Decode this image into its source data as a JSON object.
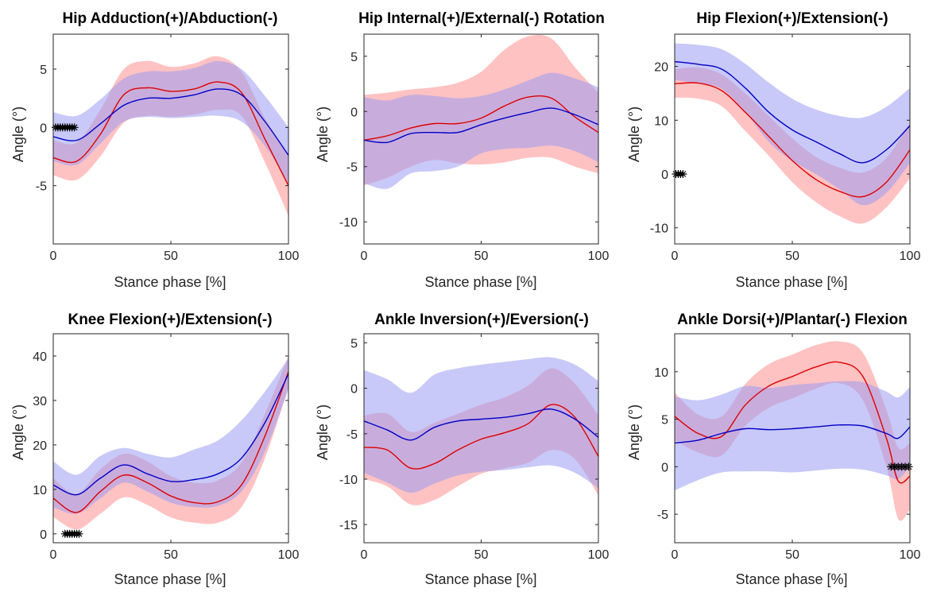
{
  "figure": {
    "series_legend": [
      {
        "key": "red",
        "color": "#e00000",
        "band_color": "#ff8f8f"
      },
      {
        "key": "blue",
        "color": "#0000c8",
        "band_color": "#9a9cf2"
      }
    ],
    "marker_color": "#000000"
  },
  "chart_data": [
    {
      "type": "line",
      "title": "Hip Adduction(+)/Abduction(-)",
      "xlabel": "Stance phase [%]",
      "ylabel": "Angle (°)",
      "xlim": [
        0,
        100
      ],
      "ylim": [
        -10,
        8
      ],
      "xticks": [
        0,
        50,
        100
      ],
      "yticks": [
        -5,
        0,
        5
      ],
      "grid": false,
      "x": [
        0,
        10,
        20,
        30,
        40,
        50,
        60,
        70,
        80,
        90,
        100
      ],
      "series": [
        {
          "key": "red",
          "mean": [
            -2.6,
            -2.9,
            -0.6,
            2.8,
            3.4,
            3.1,
            3.3,
            3.9,
            3.0,
            -1.0,
            -5.0
          ],
          "upper": [
            -1.1,
            -1.3,
            1.5,
            5.0,
            5.7,
            5.2,
            5.5,
            6.1,
            4.8,
            0.8,
            -2.5
          ],
          "lower": [
            -4.1,
            -4.5,
            -2.5,
            0.4,
            1.0,
            0.9,
            1.1,
            1.5,
            1.0,
            -3.0,
            -7.6
          ]
        },
        {
          "key": "blue",
          "mean": [
            -0.8,
            -1.1,
            0.3,
            1.9,
            2.5,
            2.5,
            2.8,
            3.3,
            2.8,
            0.5,
            -2.4
          ],
          "upper": [
            1.3,
            1.0,
            2.4,
            4.2,
            4.8,
            4.8,
            5.1,
            5.7,
            5.0,
            2.7,
            0.0
          ],
          "lower": [
            -2.9,
            -3.2,
            -1.4,
            0.5,
            0.9,
            0.8,
            0.9,
            1.0,
            0.5,
            -1.6,
            -4.8
          ]
        }
      ],
      "markers": {
        "y": 0,
        "x": [
          1,
          2,
          3,
          4,
          5,
          6,
          7,
          8,
          9
        ]
      }
    },
    {
      "type": "line",
      "title": "Hip Internal(+)/External(-) Rotation",
      "xlabel": "Stance phase [%]",
      "ylabel": "Angle (°)",
      "xlim": [
        0,
        100
      ],
      "ylim": [
        -12,
        7
      ],
      "xticks": [
        0,
        50,
        100
      ],
      "yticks": [
        -10,
        -5,
        0,
        5
      ],
      "grid": false,
      "x": [
        0,
        10,
        20,
        30,
        40,
        50,
        60,
        70,
        80,
        90,
        100
      ],
      "series": [
        {
          "key": "red",
          "mean": [
            -2.6,
            -2.2,
            -1.5,
            -1.1,
            -1.1,
            -0.6,
            0.5,
            1.3,
            1.2,
            -0.5,
            -1.9
          ],
          "upper": [
            1.5,
            1.7,
            2.0,
            2.2,
            2.6,
            3.6,
            5.6,
            6.8,
            6.6,
            4.0,
            1.7
          ],
          "lower": [
            -6.7,
            -6.0,
            -5.0,
            -4.4,
            -4.7,
            -4.8,
            -4.6,
            -4.2,
            -4.2,
            -5.0,
            -5.6
          ]
        },
        {
          "key": "blue",
          "mean": [
            -2.6,
            -2.8,
            -2.0,
            -1.9,
            -1.9,
            -1.2,
            -0.6,
            -0.1,
            0.3,
            -0.3,
            -1.2
          ],
          "upper": [
            1.3,
            1.0,
            1.5,
            1.4,
            1.2,
            1.4,
            2.0,
            2.8,
            3.5,
            3.0,
            2.2
          ],
          "lower": [
            -6.5,
            -7.0,
            -5.6,
            -5.4,
            -5.0,
            -3.8,
            -3.4,
            -3.3,
            -3.1,
            -3.6,
            -4.6
          ]
        }
      ]
    },
    {
      "type": "line",
      "title": "Hip Flexion(+)/Extension(-)",
      "xlabel": "Stance phase [%]",
      "ylabel": "Angle (°)",
      "xlim": [
        0,
        100
      ],
      "ylim": [
        -13,
        26
      ],
      "xticks": [
        0,
        50,
        100
      ],
      "yticks": [
        -10,
        0,
        10,
        20
      ],
      "grid": false,
      "x": [
        0,
        10,
        20,
        30,
        40,
        50,
        60,
        70,
        80,
        90,
        100
      ],
      "series": [
        {
          "key": "red",
          "mean": [
            16.8,
            16.9,
            15.5,
            11.5,
            7.0,
            2.5,
            -1.0,
            -3.2,
            -4.2,
            -1.5,
            4.5
          ],
          "upper": [
            19.5,
            19.8,
            18.5,
            15.0,
            10.8,
            6.6,
            3.2,
            1.2,
            0.3,
            3.0,
            9.5
          ],
          "lower": [
            14.2,
            14.0,
            12.6,
            8.0,
            3.4,
            -1.5,
            -5.2,
            -7.8,
            -9.2,
            -6.2,
            -0.8
          ]
        },
        {
          "key": "blue",
          "mean": [
            20.9,
            20.4,
            19.5,
            16.0,
            11.5,
            8.2,
            6.0,
            3.8,
            2.1,
            4.5,
            9.0
          ],
          "upper": [
            24.3,
            24.0,
            23.2,
            20.5,
            17.0,
            14.0,
            12.0,
            10.8,
            10.5,
            12.5,
            16.0
          ],
          "lower": [
            17.5,
            16.8,
            15.8,
            11.5,
            6.0,
            2.4,
            0.0,
            -2.8,
            -5.8,
            -3.5,
            2.0
          ]
        }
      ],
      "markers": {
        "y": 0,
        "x": [
          0.5,
          1.5,
          2.5,
          3.5
        ]
      }
    },
    {
      "type": "line",
      "title": "Knee Flexion(+)/Extension(-)",
      "xlabel": "Stance phase [%]",
      "ylabel": "Angle (°)",
      "xlim": [
        0,
        100
      ],
      "ylim": [
        -2,
        45
      ],
      "xticks": [
        0,
        50,
        100
      ],
      "yticks": [
        0,
        10,
        20,
        30,
        40
      ],
      "grid": false,
      "x": [
        0,
        10,
        20,
        30,
        40,
        50,
        60,
        70,
        80,
        90,
        100
      ],
      "series": [
        {
          "key": "red",
          "mean": [
            8.0,
            4.8,
            9.5,
            13.2,
            11.5,
            8.5,
            7.0,
            7.2,
            11.0,
            22.0,
            36.5
          ],
          "upper": [
            12.5,
            9.0,
            14.5,
            18.0,
            16.3,
            13.0,
            11.5,
            12.0,
            16.0,
            27.0,
            40.0
          ],
          "lower": [
            3.8,
            1.0,
            4.5,
            8.2,
            6.5,
            3.7,
            2.5,
            2.5,
            6.0,
            17.0,
            33.0
          ]
        },
        {
          "key": "blue",
          "mean": [
            11.0,
            8.8,
            12.5,
            15.5,
            13.5,
            11.8,
            12.2,
            13.5,
            17.0,
            25.0,
            36.0
          ],
          "upper": [
            16.3,
            13.3,
            17.5,
            19.3,
            18.0,
            17.2,
            19.0,
            21.0,
            25.5,
            32.0,
            39.5
          ],
          "lower": [
            6.0,
            4.5,
            8.0,
            11.5,
            9.5,
            7.0,
            6.0,
            6.3,
            9.5,
            18.5,
            32.5
          ]
        }
      ],
      "markers": {
        "y": 0,
        "x": [
          5,
          6,
          7,
          8,
          9,
          10,
          11
        ]
      }
    },
    {
      "type": "line",
      "title": "Ankle Inversion(+)/Eversion(-)",
      "xlabel": "Stance phase [%]",
      "ylabel": "Angle (°)",
      "xlim": [
        0,
        100
      ],
      "ylim": [
        -17,
        6
      ],
      "xticks": [
        0,
        50,
        100
      ],
      "yticks": [
        -15,
        -10,
        -5,
        0,
        5
      ],
      "grid": false,
      "x": [
        0,
        10,
        20,
        30,
        40,
        50,
        60,
        70,
        80,
        90,
        100
      ],
      "series": [
        {
          "key": "red",
          "mean": [
            -6.5,
            -6.8,
            -8.8,
            -8.3,
            -6.8,
            -5.6,
            -4.9,
            -3.9,
            -1.8,
            -3.2,
            -7.5
          ],
          "upper": [
            -3.0,
            -2.8,
            -4.8,
            -3.8,
            -2.8,
            -1.8,
            -1.0,
            0.3,
            2.2,
            0.5,
            -3.0
          ],
          "lower": [
            -10.0,
            -10.8,
            -12.8,
            -12.3,
            -10.8,
            -9.4,
            -8.8,
            -8.2,
            -6.8,
            -7.8,
            -11.8
          ]
        },
        {
          "key": "blue",
          "mean": [
            -3.6,
            -4.6,
            -5.7,
            -4.3,
            -3.6,
            -3.4,
            -3.2,
            -2.8,
            -2.3,
            -3.4,
            -5.4
          ],
          "upper": [
            2.0,
            1.0,
            -0.5,
            1.5,
            2.2,
            2.6,
            2.9,
            3.2,
            3.4,
            2.6,
            0.8
          ],
          "lower": [
            -9.3,
            -10.4,
            -11.5,
            -10.5,
            -9.6,
            -9.2,
            -9.0,
            -8.7,
            -8.5,
            -9.3,
            -11.0
          ]
        }
      ]
    },
    {
      "type": "line",
      "title": "Ankle Dorsi(+)/Plantar(-) Flexion",
      "xlabel": "Stance phase [%]",
      "ylabel": "Angle (°)",
      "xlim": [
        0,
        100
      ],
      "ylim": [
        -8,
        14
      ],
      "xticks": [
        0,
        50,
        100
      ],
      "yticks": [
        -5,
        0,
        5,
        10
      ],
      "grid": false,
      "x": [
        0,
        10,
        20,
        30,
        40,
        50,
        60,
        70,
        80,
        90,
        95,
        100
      ],
      "series": [
        {
          "key": "red",
          "mean": [
            5.3,
            3.5,
            3.2,
            6.5,
            8.5,
            9.5,
            10.5,
            11.0,
            9.5,
            3.0,
            -1.5,
            -1.0
          ],
          "upper": [
            7.8,
            5.5,
            5.3,
            8.7,
            10.8,
            11.8,
            12.8,
            13.2,
            12.0,
            6.0,
            2.0,
            2.5
          ],
          "lower": [
            2.8,
            1.5,
            1.2,
            4.3,
            6.2,
            7.2,
            8.2,
            8.8,
            7.0,
            0.0,
            -5.5,
            -4.5
          ]
        },
        {
          "key": "blue",
          "mean": [
            2.5,
            2.8,
            3.5,
            4.0,
            3.9,
            4.0,
            4.2,
            4.4,
            4.3,
            3.5,
            3.0,
            4.2
          ],
          "upper": [
            7.4,
            7.0,
            7.6,
            8.5,
            8.3,
            8.6,
            8.8,
            9.0,
            8.9,
            7.9,
            7.3,
            8.4
          ],
          "lower": [
            -2.5,
            -1.4,
            -0.6,
            -0.5,
            -0.5,
            -0.6,
            -0.4,
            -0.2,
            -0.3,
            -0.9,
            -1.3,
            0.0
          ]
        }
      ],
      "markers": {
        "y": 0,
        "x": [
          92,
          93.5,
          95,
          96.5,
          98,
          99.5
        ]
      }
    }
  ]
}
